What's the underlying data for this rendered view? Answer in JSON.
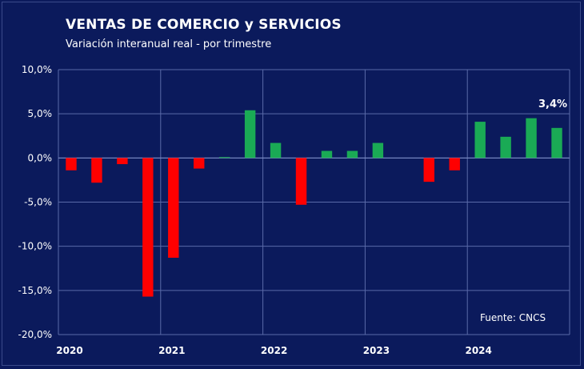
{
  "chart_data": {
    "type": "bar",
    "title": "VENTAS DE COMERCIO y SERVICIOS",
    "subtitle": "Variación interanual real - por trimestre",
    "source": "Fuente: CNCS",
    "xlabel": "",
    "ylabel": "",
    "ylim": [
      -20,
      10
    ],
    "ytick_values": [
      10,
      5,
      0,
      -5,
      -10,
      -15,
      -20
    ],
    "ytick_labels": [
      "10,0%",
      "5,0%",
      "0,0%",
      "-5,0%",
      "-10,0%",
      "-15,0%",
      "-20,0%"
    ],
    "grid": true,
    "x_group_labels": [
      "2020",
      "2021",
      "2022",
      "2023",
      "2024"
    ],
    "categories": [
      "2020-Q1",
      "2020-Q2",
      "2020-Q3",
      "2020-Q4",
      "2021-Q1",
      "2021-Q2",
      "2021-Q3",
      "2021-Q4",
      "2022-Q1",
      "2022-Q2",
      "2022-Q3",
      "2022-Q4",
      "2023-Q1",
      "2023-Q2",
      "2023-Q3",
      "2023-Q4",
      "2024-Q1",
      "2024-Q2",
      "2024-Q3",
      "2024-Q4"
    ],
    "values": [
      -1.4,
      -2.8,
      -0.7,
      -15.7,
      -11.3,
      -1.2,
      0.1,
      5.4,
      1.7,
      -5.3,
      0.8,
      0.8,
      1.7,
      0.0,
      -2.7,
      -1.4,
      4.1,
      2.4,
      4.5,
      3.4
    ],
    "highlight_label": "3,4%",
    "highlight_index": 19,
    "colors": {
      "positive": "#1aaa55",
      "negative": "#ff0000",
      "gridline": "#5a6aa8",
      "background": "#0b1a5c"
    }
  }
}
